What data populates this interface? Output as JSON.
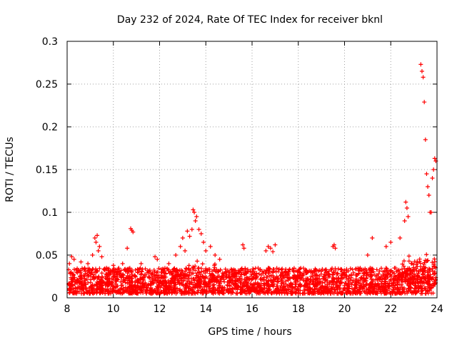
{
  "chart_data": {
    "type": "scatter",
    "title": "Day 232 of 2024, Rate Of TEC Index for receiver bknl",
    "xlabel": "GPS time / hours",
    "ylabel": "ROTI / TECUs",
    "xlim": [
      8,
      24
    ],
    "ylim": [
      0,
      0.3
    ],
    "xticks": [
      "8",
      "10",
      "12",
      "14",
      "16",
      "18",
      "20",
      "22",
      "24"
    ],
    "yticks": [
      "0",
      "0.05",
      "0.1",
      "0.15",
      "0.2",
      "0.25",
      "0.3"
    ],
    "grid": true,
    "marker": "plus",
    "color": "#ff0000",
    "baseline_band": {
      "low": 0.005,
      "high": 0.035,
      "note": "dense cloud of points across full time range"
    },
    "series": [
      {
        "name": "ROTI",
        "x": [
          8.1,
          8.2,
          8.3,
          8.4,
          8.6,
          8.9,
          9.1,
          9.2,
          9.25,
          9.3,
          9.35,
          9.4,
          9.5,
          9.7,
          10.0,
          10.4,
          10.6,
          10.75,
          10.8,
          10.85,
          11.2,
          11.8,
          11.9,
          12.4,
          12.7,
          12.9,
          13.0,
          13.1,
          13.2,
          13.3,
          13.4,
          13.45,
          13.5,
          13.55,
          13.6,
          13.7,
          13.8,
          13.9,
          14.0,
          14.2,
          14.4,
          14.6,
          15.6,
          15.65,
          16.6,
          16.7,
          16.8,
          16.9,
          17.0,
          19.5,
          19.55,
          19.6,
          21.0,
          21.2,
          21.8,
          22.0,
          22.4,
          22.6,
          22.65,
          22.7,
          22.75,
          23.3,
          23.35,
          23.4,
          23.45,
          23.5,
          23.55,
          23.6,
          23.65,
          23.7,
          23.75,
          23.8,
          23.85,
          23.9,
          23.95
        ],
        "y": [
          0.04,
          0.048,
          0.045,
          0.03,
          0.042,
          0.04,
          0.05,
          0.07,
          0.065,
          0.073,
          0.055,
          0.06,
          0.048,
          0.035,
          0.038,
          0.04,
          0.058,
          0.081,
          0.079,
          0.077,
          0.04,
          0.048,
          0.045,
          0.04,
          0.05,
          0.06,
          0.07,
          0.055,
          0.078,
          0.072,
          0.08,
          0.103,
          0.1,
          0.09,
          0.095,
          0.08,
          0.075,
          0.065,
          0.055,
          0.06,
          0.05,
          0.045,
          0.062,
          0.058,
          0.055,
          0.06,
          0.058,
          0.054,
          0.062,
          0.06,
          0.062,
          0.058,
          0.05,
          0.07,
          0.06,
          0.065,
          0.07,
          0.09,
          0.112,
          0.105,
          0.095,
          0.273,
          0.265,
          0.258,
          0.229,
          0.185,
          0.145,
          0.13,
          0.12,
          0.1,
          0.1,
          0.14,
          0.15,
          0.163,
          0.16
        ]
      }
    ]
  }
}
